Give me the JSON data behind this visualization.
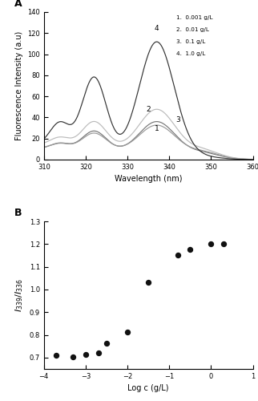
{
  "panel_A_label": "A",
  "panel_B_label": "B",
  "legend_entries": [
    "1.  0.001 g/L",
    "2.  0.01 g/L",
    "3.  0.1 g/L",
    "4.  1.0 g/L"
  ],
  "xA_min": 310,
  "xA_max": 360,
  "yA_min": 0,
  "yA_max": 140,
  "xlabel_A": "Wavelength (nm)",
  "ylabel_A": "Fluorescence Intensity (a.u)",
  "xB_min": -4,
  "xB_max": 1,
  "yB_min": 0.65,
  "yB_max": 1.3,
  "xlabel_B": "Log c (g/L)",
  "ylabel_B": "$I_{339}/I_{336}$",
  "scatter_x": [
    -3.7,
    -3.3,
    -3.0,
    -2.7,
    -2.5,
    -2.0,
    -1.5,
    -0.8,
    -0.5,
    0.0,
    0.3
  ],
  "scatter_y": [
    0.71,
    0.703,
    0.714,
    0.722,
    0.762,
    0.812,
    1.03,
    1.152,
    1.175,
    1.2,
    1.2
  ],
  "background_color": "#ffffff",
  "dot_color": "#111111",
  "yticks_B": [
    0.7,
    0.8,
    0.9,
    1.0,
    1.1,
    1.2,
    1.3
  ],
  "xticks_B": [
    -4,
    -3,
    -2,
    -1,
    0,
    1
  ],
  "yticks_A": [
    0,
    20,
    40,
    60,
    80,
    100,
    120,
    140
  ],
  "xticks_A": [
    310,
    320,
    330,
    340,
    350,
    360
  ],
  "curve_colors": [
    "#999999",
    "#bbbbbb",
    "#777777",
    "#333333"
  ],
  "curve_params": [
    [
      17,
      8
    ],
    [
      26,
      10
    ],
    [
      20,
      7
    ],
    [
      75,
      3
    ]
  ],
  "label_positions": [
    [
      337,
      26,
      "1"
    ],
    [
      335,
      44,
      "2"
    ],
    [
      342,
      34,
      "3"
    ],
    [
      337,
      121,
      "4"
    ]
  ]
}
